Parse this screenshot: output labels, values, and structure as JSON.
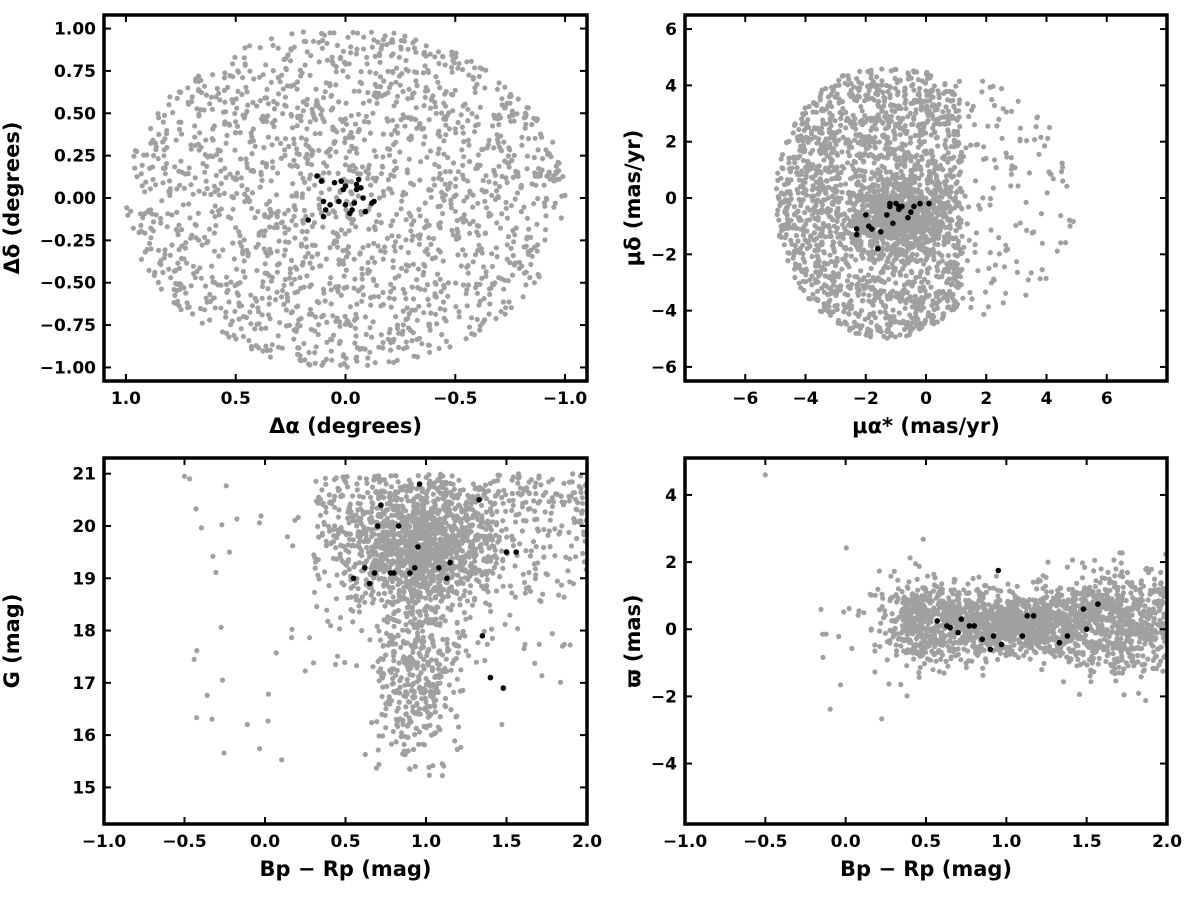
{
  "colors": {
    "field": "#a0a0a0",
    "members": "#000000",
    "axes": "#000000"
  },
  "chart_data": [
    {
      "type": "scatter",
      "xlabel": "Δα (degrees)",
      "ylabel": "Δδ (degrees)",
      "xlim": [
        1.1,
        -1.1
      ],
      "ylim": [
        -1.08,
        1.08
      ],
      "xticks": [
        1.0,
        0.5,
        0.0,
        -0.5,
        -1.0
      ],
      "xtick_labels": [
        "1.0",
        "0.5",
        "0.0",
        "−0.5",
        "−1.0"
      ],
      "yticks": [
        1.0,
        0.75,
        0.5,
        0.25,
        0.0,
        -0.25,
        -0.5,
        -0.75,
        -1.0
      ],
      "ytick_labels": [
        "1.00",
        "0.75",
        "0.50",
        "0.25",
        "0.00",
        "−0.25",
        "−0.50",
        "−0.75",
        "−1.00"
      ],
      "series": [
        {
          "color": "#a0a0a0",
          "count": 1800,
          "distribution": "uniform disk, radius 1.0 deg"
        },
        {
          "color": "#000000",
          "x": [
            -0.13,
            -0.12,
            -0.08,
            -0.07,
            -0.06,
            -0.05,
            -0.04,
            -0.03,
            -0.02,
            0.0,
            0.01,
            0.02,
            0.03,
            0.05,
            0.07,
            0.09,
            0.1,
            0.11,
            0.13,
            0.17,
            0.1,
            0.0,
            -0.05,
            -0.09
          ],
          "y": [
            -0.02,
            -0.03,
            0.0,
            0.06,
            0.11,
            0.08,
            -0.03,
            -0.07,
            -0.09,
            0.07,
            0.05,
            0.1,
            -0.02,
            0.09,
            -0.04,
            -0.07,
            -0.11,
            0.1,
            0.13,
            -0.13,
            -0.02,
            -0.04,
            0.05,
            -0.08
          ]
        }
      ]
    },
    {
      "type": "scatter",
      "xlabel": "μα* (mas/yr)",
      "ylabel": "μδ (mas/yr)",
      "xlim": [
        -8,
        8
      ],
      "ylim": [
        -6.5,
        6.5
      ],
      "xticks": [
        -6,
        -4,
        -2,
        0,
        2,
        4,
        6
      ],
      "xtick_labels": [
        "−6",
        "−4",
        "−2",
        "0",
        "2",
        "4",
        "6"
      ],
      "yticks": [
        6,
        4,
        2,
        0,
        -2,
        -4,
        -6
      ],
      "ytick_labels": [
        "6",
        "4",
        "2",
        "0",
        "−2",
        "−4",
        "−6"
      ],
      "series": [
        {
          "color": "#a0a0a0",
          "count": 2300,
          "distribution": "disk radius ~5 centered (-1.5,-1), clipped to μα*<0.5 region plus sparse tail to +5"
        },
        {
          "color": "#000000",
          "x": [
            -2.3,
            -2.3,
            -2.0,
            -1.9,
            -1.6,
            -1.5,
            -1.3,
            -1.2,
            -1.1,
            -1.0,
            -0.9,
            -0.9,
            -0.8,
            -0.6,
            -0.5,
            -0.4,
            -0.2,
            0.1,
            -1.2,
            -1.8
          ],
          "y": [
            -1.1,
            -1.3,
            -0.6,
            -1.0,
            -1.8,
            -1.2,
            -0.6,
            -0.3,
            -0.9,
            -0.2,
            -0.3,
            -0.4,
            -0.3,
            -0.7,
            -0.5,
            -0.3,
            -0.2,
            -0.2,
            -0.2,
            -1.1
          ]
        }
      ]
    },
    {
      "type": "scatter",
      "xlabel": "Bp − Rp (mag)",
      "ylabel": "G (mag)",
      "xlim": [
        -1.0,
        2.0
      ],
      "ylim": [
        14.3,
        21.3
      ],
      "y_inverted": false,
      "xticks": [
        -1.0,
        -0.5,
        0.0,
        0.5,
        1.0,
        1.5,
        2.0
      ],
      "xtick_labels": [
        "−1.0",
        "−0.5",
        "0.0",
        "0.5",
        "1.0",
        "1.5",
        "2.0"
      ],
      "yticks": [
        21,
        20,
        19,
        18,
        17,
        16,
        15
      ],
      "ytick_labels": [
        "21",
        "20",
        "19",
        "18",
        "17",
        "16",
        "15"
      ],
      "series": [
        {
          "color": "#a0a0a0",
          "count": 2100,
          "distribution": "dense clump Bp-Rp~1.0 G~19.5, tail to G~15"
        },
        {
          "color": "#000000",
          "x": [
            0.55,
            0.62,
            0.65,
            0.7,
            0.72,
            0.78,
            0.8,
            0.83,
            0.9,
            0.93,
            0.96,
            1.08,
            1.13,
            1.15,
            1.33,
            1.35,
            1.4,
            1.48,
            1.5,
            1.56,
            0.68,
            0.95
          ],
          "y": [
            19.0,
            19.2,
            18.9,
            20.0,
            20.4,
            19.1,
            19.1,
            20.0,
            19.1,
            19.2,
            20.8,
            19.2,
            19.0,
            19.3,
            20.5,
            17.9,
            17.1,
            16.9,
            19.5,
            19.5,
            19.1,
            19.6
          ]
        }
      ]
    },
    {
      "type": "scatter",
      "xlabel": "Bp − Rp (mag)",
      "ylabel": "ϖ (mas)",
      "xlim": [
        -1.0,
        2.0
      ],
      "ylim": [
        -5.8,
        5.1
      ],
      "xticks": [
        -1.0,
        -0.5,
        0.0,
        0.5,
        1.0,
        1.5,
        2.0
      ],
      "xtick_labels": [
        "−1.0",
        "−0.5",
        "0.0",
        "0.5",
        "1.0",
        "1.5",
        "2.0"
      ],
      "yticks": [
        4,
        2,
        0,
        -2,
        -4
      ],
      "ytick_labels": [
        "4",
        "2",
        "0",
        "−2",
        "−4"
      ],
      "series": [
        {
          "color": "#a0a0a0",
          "count": 2100,
          "distribution": "band ϖ~0.3±0.6 across Bp-Rp 0.3–2.0"
        },
        {
          "color": "#000000",
          "x": [
            0.57,
            0.63,
            0.65,
            0.7,
            0.72,
            0.77,
            0.8,
            0.85,
            0.9,
            0.92,
            0.95,
            0.97,
            1.1,
            1.13,
            1.17,
            1.33,
            1.38,
            1.48,
            1.5,
            1.57
          ],
          "y": [
            0.25,
            0.1,
            0.05,
            -0.1,
            0.3,
            0.1,
            0.1,
            -0.3,
            -0.6,
            -0.2,
            1.75,
            -0.45,
            -0.2,
            0.4,
            0.4,
            -0.4,
            -0.2,
            0.6,
            0.0,
            0.75
          ]
        }
      ]
    }
  ]
}
